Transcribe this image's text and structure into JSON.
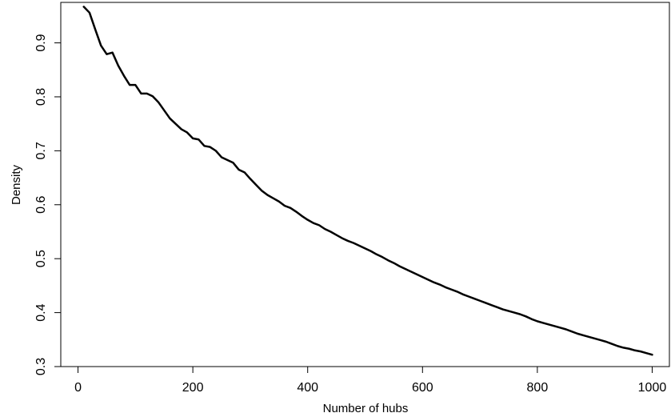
{
  "chart_data": {
    "type": "line",
    "title": "",
    "xlabel": "Number of hubs",
    "ylabel": "Density",
    "xlim": [
      -30,
      1030
    ],
    "ylim": [
      0.3,
      0.975
    ],
    "xticks": [
      0,
      200,
      400,
      600,
      800,
      1000
    ],
    "xtick_labels": [
      "0",
      "200",
      "400",
      "600",
      "800",
      "1000"
    ],
    "yticks": [
      0.3,
      0.4,
      0.5,
      0.6,
      0.7,
      0.8,
      0.9
    ],
    "ytick_labels": [
      "0.3",
      "0.4",
      "0.5",
      "0.6",
      "0.7",
      "0.8",
      "0.9"
    ],
    "grid": false,
    "legend": "none",
    "line_color": "#000000",
    "series": [
      {
        "x": [
          10,
          20,
          30,
          40,
          50,
          60,
          70,
          80,
          90,
          100,
          110,
          120,
          130,
          140,
          150,
          160,
          170,
          180,
          190,
          200,
          210,
          220,
          230,
          240,
          250,
          260,
          270,
          280,
          290,
          300,
          310,
          320,
          330,
          340,
          350,
          360,
          370,
          380,
          390,
          400,
          410,
          420,
          430,
          440,
          450,
          460,
          470,
          480,
          490,
          500,
          510,
          520,
          530,
          540,
          550,
          560,
          570,
          580,
          590,
          600,
          610,
          620,
          630,
          640,
          650,
          660,
          670,
          680,
          690,
          700,
          710,
          720,
          730,
          740,
          750,
          760,
          770,
          780,
          790,
          800,
          810,
          820,
          830,
          840,
          850,
          860,
          870,
          880,
          890,
          900,
          910,
          920,
          930,
          940,
          950,
          960,
          970,
          980,
          990,
          1000
        ],
        "y": [
          0.967,
          0.956,
          0.925,
          0.895,
          0.879,
          0.882,
          0.858,
          0.839,
          0.822,
          0.822,
          0.806,
          0.806,
          0.801,
          0.79,
          0.775,
          0.76,
          0.75,
          0.74,
          0.734,
          0.723,
          0.721,
          0.709,
          0.707,
          0.7,
          0.688,
          0.683,
          0.678,
          0.665,
          0.66,
          0.648,
          0.637,
          0.626,
          0.618,
          0.612,
          0.606,
          0.598,
          0.594,
          0.587,
          0.579,
          0.572,
          0.566,
          0.562,
          0.555,
          0.55,
          0.544,
          0.538,
          0.533,
          0.529,
          0.524,
          0.519,
          0.514,
          0.508,
          0.503,
          0.497,
          0.492,
          0.486,
          0.481,
          0.476,
          0.471,
          0.466,
          0.461,
          0.456,
          0.452,
          0.447,
          0.443,
          0.439,
          0.434,
          0.43,
          0.426,
          0.422,
          0.418,
          0.414,
          0.41,
          0.406,
          0.403,
          0.4,
          0.397,
          0.393,
          0.388,
          0.384,
          0.381,
          0.378,
          0.375,
          0.372,
          0.369,
          0.365,
          0.361,
          0.358,
          0.355,
          0.352,
          0.349,
          0.346,
          0.342,
          0.338,
          0.335,
          0.333,
          0.33,
          0.328,
          0.325,
          0.322
        ]
      }
    ]
  }
}
